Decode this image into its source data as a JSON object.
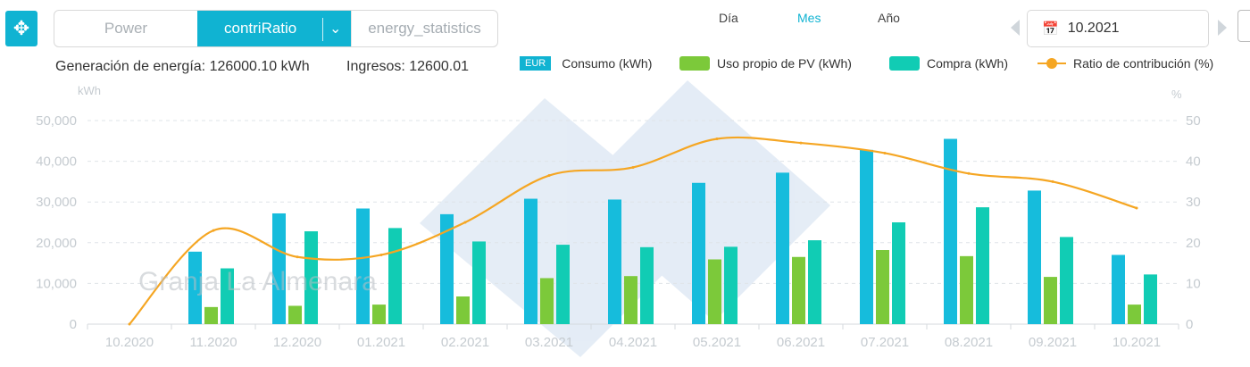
{
  "header": {
    "move_icon": "move-arrows-icon",
    "view_tabs": {
      "power": "Power",
      "active": "contriRatio",
      "energy": "energy_statistics"
    },
    "periods": [
      "Día",
      "Mes",
      "Año"
    ],
    "active_period": "Mes",
    "date_value": "10.2021"
  },
  "summary": {
    "generation": "Generación de energía: 126000.10 kWh",
    "income": "Ingresos: 12600.01"
  },
  "legend": {
    "currency_badge": "EUR",
    "items": [
      "Consumo (kWh)",
      "Uso propio de PV (kWh)",
      "Compra (kWh)",
      "Ratio de contribución (%)"
    ]
  },
  "watermark": "Granja La Almenara",
  "colors": {
    "accent": "#10b3d2",
    "consumo": "#16bcdc",
    "uso_propio": "#7cc93a",
    "compra": "#11ccb4",
    "ratio": "#f5a623",
    "axis_text": "#c5cbd0"
  },
  "chart_data": {
    "type": "bar",
    "categories": [
      "10.2020",
      "11.2020",
      "12.2020",
      "01.2021",
      "02.2021",
      "03.2021",
      "04.2021",
      "05.2021",
      "06.2021",
      "07.2021",
      "08.2021",
      "09.2021",
      "10.2021"
    ],
    "ylabel": "kWh",
    "ylabel_right": "%",
    "ylim": [
      0,
      50000
    ],
    "y_ticks": [
      "0",
      "10,000",
      "20,000",
      "30,000",
      "40,000",
      "50,000"
    ],
    "ylim_right": [
      0,
      50
    ],
    "y_ticks_right": [
      "0",
      "10",
      "20",
      "30",
      "40",
      "50"
    ],
    "grid": true,
    "legend_position": "top",
    "series": [
      {
        "name": "Consumo (kWh)",
        "type": "bar",
        "values": [
          0,
          17800,
          27200,
          28400,
          27000,
          30800,
          30600,
          34700,
          37200,
          42800,
          45500,
          32800,
          17000
        ]
      },
      {
        "name": "Uso propio de PV (kWh)",
        "type": "bar",
        "values": [
          0,
          4200,
          4500,
          4800,
          6800,
          11300,
          11800,
          15900,
          16500,
          18200,
          16700,
          11600,
          4800
        ]
      },
      {
        "name": "Compra (kWh)",
        "type": "bar",
        "values": [
          0,
          13700,
          22800,
          23600,
          20300,
          19500,
          18900,
          19000,
          20600,
          25000,
          28700,
          21400,
          12200
        ]
      },
      {
        "name": "Ratio de contribución (%)",
        "type": "line",
        "axis": "right",
        "values": [
          0,
          23,
          16.5,
          17,
          25,
          36.5,
          38.5,
          45.5,
          44.5,
          42,
          37,
          35,
          28.5
        ]
      }
    ]
  }
}
